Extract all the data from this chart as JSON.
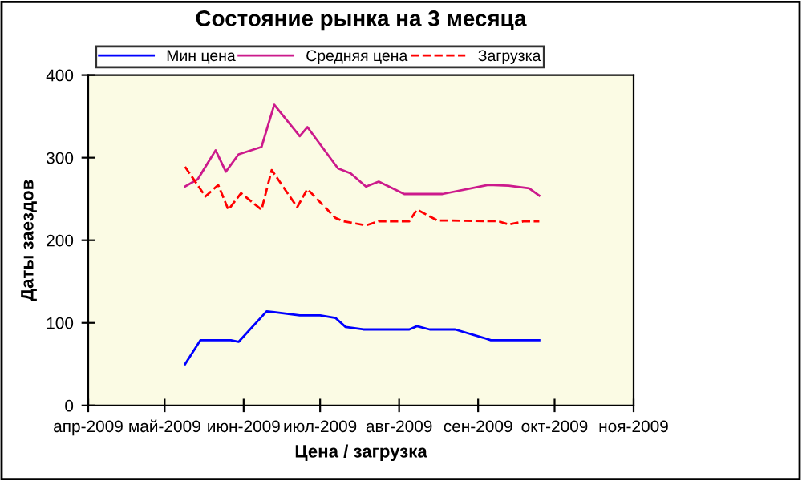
{
  "chart_data": {
    "type": "line",
    "title": "Состояние рынка на 3 месяца",
    "xlabel": "Цена / загрузка",
    "ylabel": "Даты заездов",
    "xlim": [
      "2009-04-01",
      "2009-11-01"
    ],
    "xticks": [
      {
        "value": "2009-04-01",
        "label": "апр-2009"
      },
      {
        "value": "2009-05-01",
        "label": "май-2009"
      },
      {
        "value": "2009-06-01",
        "label": "июн-2009"
      },
      {
        "value": "2009-07-01",
        "label": "июл-2009"
      },
      {
        "value": "2009-08-01",
        "label": "авг-2009"
      },
      {
        "value": "2009-09-01",
        "label": "сен-2009"
      },
      {
        "value": "2009-10-01",
        "label": "окт-2009"
      },
      {
        "value": "2009-11-01",
        "label": "ноя-2009"
      }
    ],
    "ylim": [
      0,
      400
    ],
    "yticks": [
      0,
      100,
      200,
      300,
      400
    ],
    "grid": false,
    "legend": "top",
    "marker": "none",
    "series": [
      {
        "name": "Мин цена",
        "color": "#0000ff",
        "line_style": "solid",
        "x": [
          "2009-05-09",
          "2009-05-15",
          "2009-05-27",
          "2009-05-30",
          "2009-06-10",
          "2009-06-13",
          "2009-06-23",
          "2009-07-01",
          "2009-07-07",
          "2009-07-11",
          "2009-07-18",
          "2009-07-26",
          "2009-08-05",
          "2009-08-08",
          "2009-08-13",
          "2009-08-23",
          "2009-09-03",
          "2009-09-06",
          "2009-09-25"
        ],
        "values": [
          50,
          79,
          79,
          77,
          114,
          113,
          109,
          109,
          106,
          95,
          92,
          92,
          92,
          96,
          92,
          92,
          82,
          79,
          79
        ]
      },
      {
        "name": "Средняя цена",
        "color": "#cc1a8c",
        "line_style": "solid",
        "x": [
          "2009-05-09",
          "2009-05-14",
          "2009-05-21",
          "2009-05-25",
          "2009-05-30",
          "2009-06-08",
          "2009-06-13",
          "2009-06-23",
          "2009-06-26",
          "2009-07-08",
          "2009-07-13",
          "2009-07-19",
          "2009-07-24",
          "2009-08-03",
          "2009-08-18",
          "2009-09-05",
          "2009-09-13",
          "2009-09-21",
          "2009-09-25"
        ],
        "values": [
          265,
          274,
          309,
          283,
          304,
          313,
          364,
          326,
          337,
          287,
          281,
          265,
          271,
          256,
          256,
          267,
          266,
          263,
          254
        ]
      },
      {
        "name": "Загрузка",
        "color": "#ff0000",
        "line_style": "dashed",
        "x": [
          "2009-05-09",
          "2009-05-17",
          "2009-05-22",
          "2009-05-26",
          "2009-05-31",
          "2009-06-08",
          "2009-06-12",
          "2009-06-22",
          "2009-06-26",
          "2009-07-07",
          "2009-07-10",
          "2009-07-19",
          "2009-07-24",
          "2009-08-05",
          "2009-08-08",
          "2009-08-16",
          "2009-09-09",
          "2009-09-13",
          "2009-09-19",
          "2009-09-25"
        ],
        "values": [
          289,
          253,
          267,
          237,
          257,
          237,
          285,
          240,
          262,
          227,
          223,
          218,
          223,
          223,
          237,
          224,
          223,
          219,
          223,
          223
        ]
      }
    ]
  }
}
